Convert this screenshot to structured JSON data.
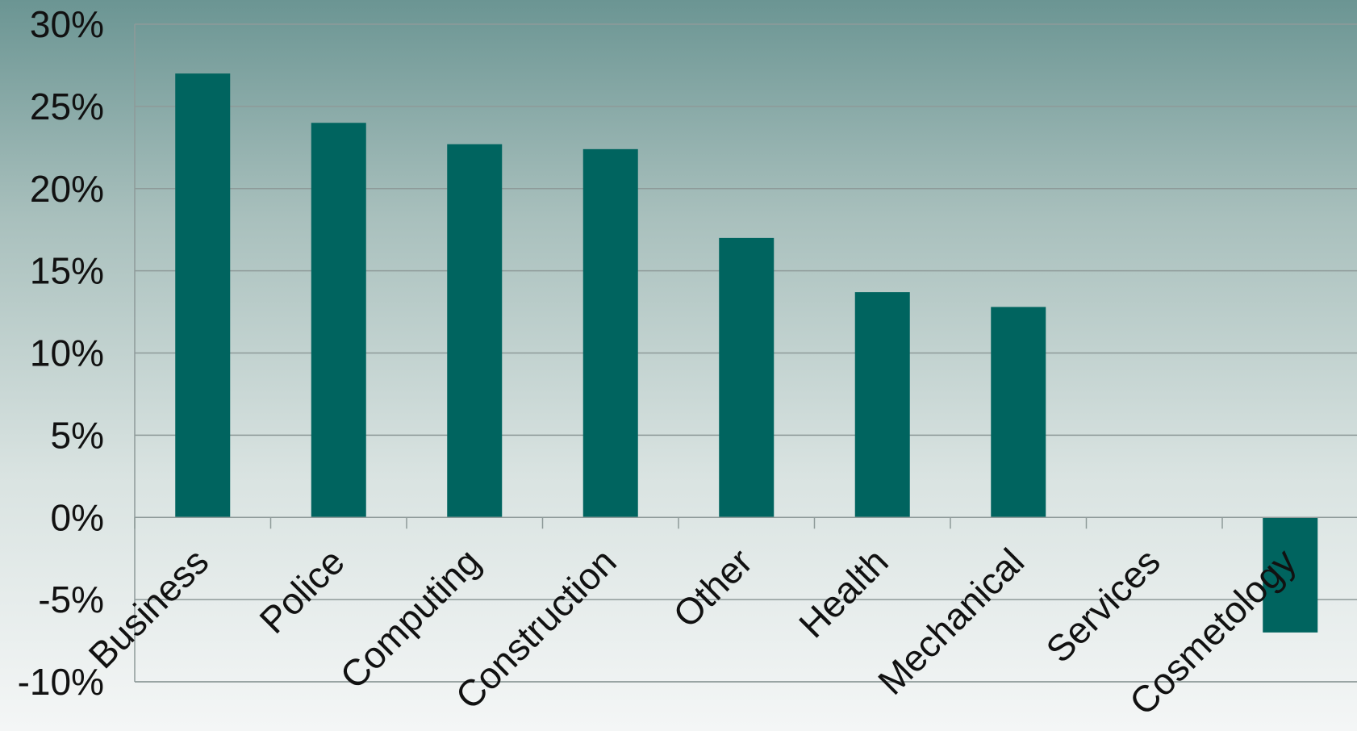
{
  "chart_data": {
    "type": "bar",
    "categories": [
      "Business",
      "Police",
      "Computing",
      "Construction",
      "Other",
      "Health",
      "Mechanical",
      "Services",
      "Cosmetology"
    ],
    "values": [
      27,
      24,
      22.7,
      22.4,
      17,
      13.7,
      12.8,
      0,
      -7
    ],
    "ylim": [
      -10,
      30
    ],
    "yticks": [
      30,
      25,
      20,
      15,
      10,
      5,
      0,
      -5,
      -10
    ],
    "ytick_labels": [
      "30%",
      "25%",
      "20%",
      "15%",
      "10%",
      "5%",
      "0%",
      "-5%",
      "-10%"
    ],
    "grid": true,
    "bar_color": "#00645f",
    "title": "",
    "xlabel": "",
    "ylabel": ""
  }
}
